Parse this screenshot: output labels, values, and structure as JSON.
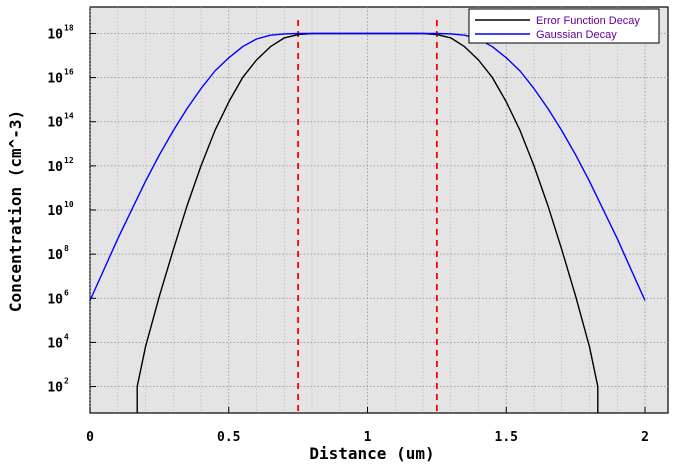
{
  "chart_data": {
    "type": "line",
    "xlabel": "Distance (um)",
    "ylabel": "Concentration (cm^-3)",
    "xlim": [
      0,
      2
    ],
    "ylim_log10": [
      0.8,
      19.2
    ],
    "y_scale": "log",
    "grid": true,
    "legend_position": "top-right",
    "x_ticks": [
      {
        "value": 0,
        "label": "0"
      },
      {
        "value": 0.5,
        "label": "0.5"
      },
      {
        "value": 1,
        "label": "1"
      },
      {
        "value": 1.5,
        "label": "1.5"
      },
      {
        "value": 2,
        "label": "2"
      }
    ],
    "y_ticks": [
      {
        "exp": 2,
        "base": "10",
        "sup": "2"
      },
      {
        "exp": 4,
        "base": "10",
        "sup": "4"
      },
      {
        "exp": 6,
        "base": "10",
        "sup": "6"
      },
      {
        "exp": 8,
        "base": "10",
        "sup": "8"
      },
      {
        "exp": 10,
        "base": "10",
        "sup": "10"
      },
      {
        "exp": 12,
        "base": "10",
        "sup": "12"
      },
      {
        "exp": 14,
        "base": "10",
        "sup": "14"
      },
      {
        "exp": 16,
        "base": "10",
        "sup": "16"
      },
      {
        "exp": 18,
        "base": "10",
        "sup": "18"
      }
    ],
    "series": [
      {
        "name": "Error Function Decay",
        "color": "#000000",
        "x": [
          0.17,
          0.17,
          0.2,
          0.25,
          0.3,
          0.35,
          0.4,
          0.45,
          0.5,
          0.55,
          0.6,
          0.65,
          0.7,
          0.75,
          0.8,
          0.85,
          0.9,
          1.0,
          1.1,
          1.15,
          1.2,
          1.25,
          1.3,
          1.35,
          1.4,
          1.45,
          1.5,
          1.55,
          1.6,
          1.65,
          1.7,
          1.75,
          1.8,
          1.83,
          1.83
        ],
        "log10_y": [
          0.8,
          2.0,
          3.8,
          6.1,
          8.2,
          10.2,
          12.0,
          13.6,
          14.9,
          16.0,
          16.8,
          17.4,
          17.8,
          17.95,
          18.0,
          18.0,
          18.0,
          18.0,
          18.0,
          18.0,
          18.0,
          17.95,
          17.8,
          17.4,
          16.8,
          16.0,
          14.9,
          13.6,
          12.0,
          10.2,
          8.2,
          6.1,
          3.8,
          2.0,
          0.8
        ]
      },
      {
        "name": "Gaussian Decay",
        "color": "#0000ff",
        "x": [
          0,
          0.05,
          0.1,
          0.15,
          0.2,
          0.25,
          0.3,
          0.35,
          0.4,
          0.45,
          0.5,
          0.55,
          0.6,
          0.65,
          0.7,
          0.75,
          1.0,
          1.25,
          1.3,
          1.35,
          1.4,
          1.45,
          1.5,
          1.55,
          1.6,
          1.65,
          1.7,
          1.75,
          1.8,
          1.85,
          1.9,
          1.95,
          2.0
        ],
        "log10_y": [
          5.9,
          7.3,
          8.7,
          10.0,
          11.3,
          12.5,
          13.6,
          14.6,
          15.5,
          16.3,
          16.9,
          17.4,
          17.75,
          17.92,
          17.98,
          18.0,
          18.0,
          18.0,
          17.98,
          17.92,
          17.75,
          17.4,
          16.9,
          16.3,
          15.5,
          14.6,
          13.6,
          12.5,
          11.3,
          10.0,
          8.7,
          7.3,
          5.9
        ]
      }
    ],
    "reference_lines": [
      {
        "x": 0.75,
        "color": "#ff0000",
        "style": "dashed"
      },
      {
        "x": 1.25,
        "color": "#ff0000",
        "style": "dashed"
      }
    ]
  }
}
